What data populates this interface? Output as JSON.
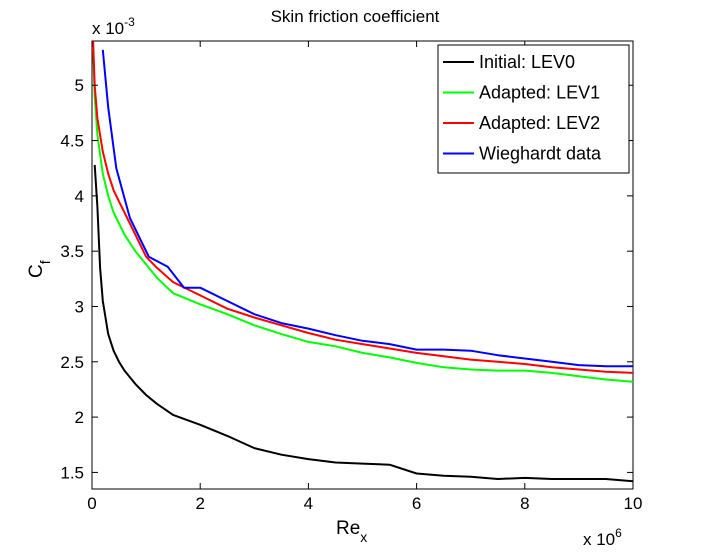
{
  "chart_data": {
    "type": "line",
    "title": "Skin friction coefficient",
    "xlabel_main": "Re",
    "xlabel_sub": "x",
    "ylabel_main": "C",
    "ylabel_sub": "f",
    "x_scale_base": "x 10",
    "x_scale_exp": "6",
    "y_scale_base": "x 10",
    "y_scale_exp": "-3",
    "xlim": [
      0,
      10
    ],
    "ylim": [
      1.35,
      5.4
    ],
    "x_ticks": [
      0,
      2,
      4,
      6,
      8,
      10
    ],
    "x_tick_labels": [
      "0",
      "2",
      "4",
      "6",
      "8",
      "10"
    ],
    "y_ticks": [
      1.5,
      2,
      2.5,
      3,
      3.5,
      4,
      4.5,
      5
    ],
    "y_tick_labels": [
      "1.5",
      "2",
      "2.5",
      "3",
      "3.5",
      "4",
      "4.5",
      "5"
    ],
    "legend_position": "top-right",
    "series": [
      {
        "name": "Initial: LEV0",
        "color": "#000000",
        "x": [
          0.05,
          0.1,
          0.15,
          0.2,
          0.25,
          0.3,
          0.4,
          0.5,
          0.6,
          0.8,
          1.0,
          1.2,
          1.5,
          2.0,
          2.5,
          3.0,
          3.5,
          4.0,
          4.5,
          5.0,
          5.5,
          6.0,
          6.5,
          7.0,
          7.5,
          8.0,
          8.5,
          9.0,
          9.5,
          10.0
        ],
        "y": [
          4.28,
          3.9,
          3.35,
          3.05,
          2.9,
          2.75,
          2.6,
          2.5,
          2.42,
          2.3,
          2.2,
          2.12,
          2.02,
          1.93,
          1.83,
          1.72,
          1.66,
          1.62,
          1.59,
          1.58,
          1.57,
          1.49,
          1.47,
          1.46,
          1.44,
          1.45,
          1.44,
          1.44,
          1.44,
          1.42
        ]
      },
      {
        "name": "Adapted: LEV1",
        "color": "#00ff00",
        "x": [
          0.02,
          0.05,
          0.1,
          0.2,
          0.3,
          0.4,
          0.5,
          0.6,
          0.8,
          1.0,
          1.2,
          1.5,
          2.0,
          2.5,
          3.0,
          3.5,
          4.0,
          4.5,
          5.0,
          5.5,
          6.0,
          6.5,
          7.0,
          7.5,
          8.0,
          8.5,
          9.0,
          9.5,
          10.0
        ],
        "y": [
          5.35,
          4.9,
          4.55,
          4.2,
          4.0,
          3.85,
          3.75,
          3.65,
          3.5,
          3.38,
          3.26,
          3.12,
          3.02,
          2.93,
          2.83,
          2.75,
          2.68,
          2.64,
          2.58,
          2.54,
          2.49,
          2.45,
          2.43,
          2.42,
          2.42,
          2.4,
          2.37,
          2.34,
          2.32
        ]
      },
      {
        "name": "Adapted: LEV2",
        "color": "#ff0000",
        "x": [
          0.02,
          0.05,
          0.1,
          0.2,
          0.3,
          0.4,
          0.5,
          0.6,
          0.8,
          1.0,
          1.2,
          1.5,
          2.0,
          2.5,
          3.0,
          3.5,
          4.0,
          4.5,
          5.0,
          5.5,
          6.0,
          6.5,
          7.0,
          7.5,
          8.0,
          8.5,
          9.0,
          9.5,
          10.0
        ],
        "y": [
          5.4,
          5.0,
          4.7,
          4.4,
          4.2,
          4.05,
          3.95,
          3.85,
          3.65,
          3.45,
          3.35,
          3.22,
          3.1,
          2.98,
          2.9,
          2.83,
          2.76,
          2.7,
          2.66,
          2.62,
          2.58,
          2.55,
          2.52,
          2.5,
          2.48,
          2.45,
          2.43,
          2.41,
          2.4
        ]
      },
      {
        "name": "Wieghardt data",
        "color": "#0000ff",
        "x": [
          0.2,
          0.3,
          0.45,
          0.7,
          1.05,
          1.4,
          1.7,
          2.0,
          2.5,
          3.0,
          3.5,
          4.0,
          4.5,
          5.0,
          5.5,
          6.0,
          6.5,
          7.0,
          7.5,
          8.0,
          8.5,
          9.0,
          9.5,
          10.0
        ],
        "y": [
          5.32,
          4.8,
          4.25,
          3.8,
          3.45,
          3.36,
          3.17,
          3.17,
          3.05,
          2.93,
          2.85,
          2.8,
          2.74,
          2.69,
          2.66,
          2.61,
          2.61,
          2.6,
          2.56,
          2.53,
          2.5,
          2.47,
          2.46,
          2.46
        ]
      }
    ]
  }
}
